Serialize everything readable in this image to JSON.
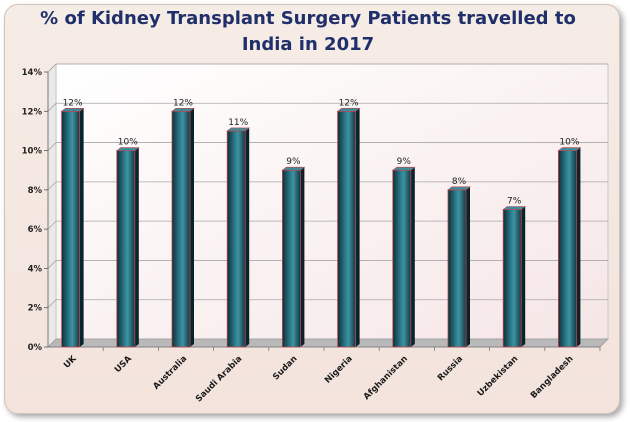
{
  "chart_data": {
    "type": "bar",
    "title": "% of Kidney Transplant Surgery Patients travelled to India in 2017",
    "categories": [
      "UK",
      "USA",
      "Australia",
      "Saudi Arabia",
      "Sudan",
      "Nigeria",
      "Afghanistan",
      "Russia",
      "Uzbekistan",
      "Bangladesh"
    ],
    "values": [
      12,
      10,
      12,
      11,
      9,
      12,
      9,
      8,
      7,
      10
    ],
    "data_labels": [
      "12%",
      "10%",
      "12%",
      "11%",
      "9%",
      "12%",
      "9%",
      "8%",
      "7%",
      "10%"
    ],
    "y_ticks": [
      "0%",
      "2%",
      "4%",
      "6%",
      "8%",
      "10%",
      "12%",
      "14%"
    ],
    "ylim": [
      0,
      14
    ],
    "xlabel": "",
    "ylabel": "",
    "grid": true,
    "colors": {
      "bar_dark": "#0f3a45",
      "bar_mid": "#2d7d8c",
      "bar_light": "#5aa7b4",
      "bar_edge": "#c2424f",
      "title": "#1f2f6b",
      "plot_bg": "#ffffff",
      "floor": "#b9b9b9"
    }
  }
}
